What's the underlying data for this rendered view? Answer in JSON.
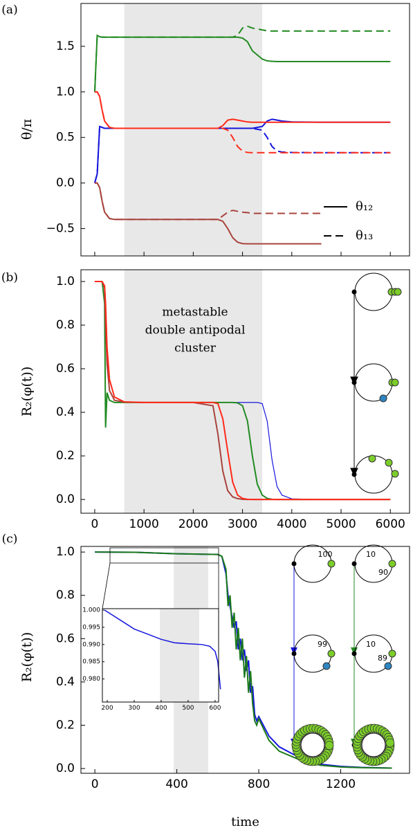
{
  "chart_data": [
    {
      "type": "line",
      "panel_label": "(a)",
      "y_label": "θ/π",
      "x": [
        0,
        50,
        100,
        150,
        200,
        300,
        400,
        600,
        1000,
        2400,
        2500,
        2600,
        2700,
        2800,
        2900,
        3000,
        3100,
        3200,
        3400,
        3500,
        3600,
        3700,
        3800,
        4000,
        4600,
        5000,
        6000
      ],
      "series": [
        {
          "color": "#228b22",
          "dash": "solid",
          "values": [
            1,
            1.62,
            1.605,
            1.6,
            1.6,
            1.6,
            1.6,
            1.6,
            1.6,
            1.6,
            1.6,
            1.6,
            1.6,
            1.6,
            1.6,
            1.59,
            1.55,
            1.45,
            1.36,
            1.34,
            1.335,
            1.333,
            1.333,
            1.333,
            1.333,
            1.333,
            1.333
          ]
        },
        {
          "color": "#228b22",
          "dash": "dashed",
          "values": [
            1,
            1.62,
            1.605,
            1.6,
            1.6,
            1.6,
            1.6,
            1.6,
            1.6,
            1.6,
            1.6,
            1.6,
            1.6,
            1.6,
            1.62,
            1.7,
            1.72,
            1.7,
            1.68,
            1.67,
            1.667,
            1.667,
            1.667,
            1.667,
            1.667,
            1.667,
            1.667
          ]
        },
        {
          "color": "#1515dd",
          "dash": "solid",
          "values": [
            0,
            0.1,
            0.62,
            0.61,
            0.6,
            0.6,
            0.6,
            0.6,
            0.6,
            0.6,
            0.6,
            0.6,
            0.6,
            0.6,
            0.6,
            0.6,
            0.6,
            0.6,
            0.62,
            0.68,
            0.7,
            0.69,
            0.68,
            0.67,
            0.667,
            0.667,
            0.667
          ]
        },
        {
          "color": "#1515dd",
          "dash": "dashed",
          "values": [
            0,
            0.1,
            0.62,
            0.61,
            0.6,
            0.6,
            0.6,
            0.6,
            0.6,
            0.6,
            0.6,
            0.6,
            0.6,
            0.6,
            0.6,
            0.6,
            0.6,
            0.6,
            0.58,
            0.5,
            0.4,
            0.35,
            0.34,
            0.335,
            0.333,
            0.333,
            0.333
          ]
        },
        {
          "color": "#ff2a1a",
          "dash": "solid",
          "values": [
            1,
            1,
            0.95,
            0.8,
            0.68,
            0.61,
            0.6,
            0.6,
            0.6,
            0.6,
            0.6,
            0.63,
            0.69,
            0.7,
            0.69,
            0.68,
            0.67,
            0.667,
            0.667,
            0.667,
            0.667,
            0.667,
            0.667,
            0.667,
            0.667,
            0.667,
            0.667
          ]
        },
        {
          "color": "#ff2a1a",
          "dash": "dashed",
          "values": [
            1,
            1,
            0.95,
            0.8,
            0.68,
            0.61,
            0.6,
            0.6,
            0.6,
            0.6,
            0.6,
            0.6,
            0.58,
            0.5,
            0.4,
            0.35,
            0.335,
            0.333,
            0.333,
            0.333,
            0.333,
            0.333,
            0.333,
            0.333,
            0.333,
            0.333,
            0.333
          ]
        },
        {
          "color": "#a8433d",
          "dash": "solid",
          "values": [
            0,
            0,
            -0.05,
            -0.2,
            -0.32,
            -0.39,
            -0.4,
            -0.4,
            -0.4,
            -0.4,
            -0.4,
            -0.42,
            -0.5,
            -0.6,
            -0.65,
            -0.665,
            -0.667,
            -0.667,
            -0.667,
            -0.667,
            -0.667,
            -0.667,
            -0.667,
            -0.667,
            -0.667,
            null,
            null
          ]
        },
        {
          "color": "#a8433d",
          "dash": "dashed",
          "values": [
            0,
            0,
            -0.05,
            -0.2,
            -0.32,
            -0.39,
            -0.4,
            -0.4,
            -0.4,
            -0.4,
            -0.4,
            -0.36,
            -0.32,
            -0.3,
            -0.31,
            -0.32,
            -0.325,
            -0.333,
            -0.333,
            -0.333,
            -0.333,
            -0.333,
            -0.333,
            -0.333,
            -0.333,
            null,
            null
          ]
        }
      ],
      "legend": [
        {
          "label": "θ₁₂",
          "dash": "solid"
        },
        {
          "label": "θ₁₃",
          "dash": "dashed"
        }
      ],
      "shaded": [
        600,
        3400
      ],
      "xlim": [
        -280,
        6390
      ],
      "xticks": [
        0,
        1000,
        2000,
        3000,
        4000,
        5000,
        6000
      ],
      "x_tick_labels": false,
      "ylim": [
        -0.8,
        1.97
      ],
      "yticks": [
        {
          "value": -0.5,
          "label": "−0.5"
        },
        {
          "value": 0,
          "label": "0.0"
        },
        {
          "value": 0.5,
          "label": "0.5"
        },
        {
          "value": 1,
          "label": "1.0"
        },
        {
          "value": 1.5,
          "label": "1.5"
        }
      ]
    },
    {
      "type": "line",
      "panel_label": "(b)",
      "y_label": "R₂(φ(t))",
      "annotation": [
        "metastable",
        "double antipodal",
        "cluster"
      ],
      "x": [
        0,
        150,
        200,
        220,
        250,
        300,
        400,
        600,
        1000,
        2000,
        2400,
        2500,
        2600,
        2700,
        2800,
        2900,
        3000,
        3100,
        3200,
        3300,
        3400,
        3500,
        3600,
        3700,
        3800,
        4000,
        4500,
        6000
      ],
      "series": [
        {
          "color": "#1515dd",
          "dash": "solid",
          "width": 1.2,
          "values": [
            1,
            1,
            0.98,
            0.9,
            0.7,
            0.55,
            0.47,
            0.448,
            0.445,
            0.445,
            0.445,
            0.445,
            0.445,
            0.445,
            0.445,
            0.445,
            0.445,
            0.445,
            0.445,
            0.445,
            0.44,
            0.36,
            0.18,
            0.06,
            0.02,
            0.003,
            0,
            0
          ]
        },
        {
          "color": "#228b22",
          "dash": "solid",
          "values": [
            1,
            1,
            0.9,
            0.33,
            0.49,
            0.455,
            0.445,
            0.445,
            0.445,
            0.445,
            0.445,
            0.445,
            0.445,
            0.445,
            0.445,
            0.443,
            0.43,
            0.36,
            0.2,
            0.07,
            0.02,
            0.005,
            0.001,
            0,
            0,
            0,
            0,
            0
          ]
        },
        {
          "color": "#a8433d",
          "dash": "solid",
          "values": [
            1,
            1,
            0.97,
            0.8,
            0.62,
            0.5,
            0.455,
            0.447,
            0.445,
            0.445,
            0.43,
            0.3,
            0.13,
            0.04,
            0.012,
            0.004,
            0.001,
            0,
            0,
            0,
            0,
            0,
            0,
            0,
            0,
            0,
            0,
            0
          ]
        },
        {
          "color": "#ff2a1a",
          "dash": "solid",
          "values": [
            1,
            1,
            0.98,
            0.9,
            0.7,
            0.55,
            0.47,
            0.448,
            0.445,
            0.445,
            0.445,
            0.44,
            0.37,
            0.22,
            0.08,
            0.02,
            0.005,
            0.001,
            0,
            0,
            0,
            0,
            0,
            0,
            0,
            0,
            0,
            0
          ]
        }
      ],
      "shaded": [
        600,
        3400
      ],
      "xlim": [
        -280,
        6390
      ],
      "xticks": [
        0,
        1000,
        2000,
        3000,
        4000,
        5000,
        6000
      ],
      "x_tick_labels": true,
      "ylim": [
        -0.063,
        1.054
      ],
      "yticks": [
        {
          "value": 0,
          "label": "0.0"
        },
        {
          "value": 0.2,
          "label": "0.2"
        },
        {
          "value": 0.4,
          "label": "0.4"
        },
        {
          "value": 0.6,
          "label": "0.6"
        },
        {
          "value": 0.8,
          "label": "0.8"
        },
        {
          "value": 1,
          "label": "1.0"
        }
      ]
    },
    {
      "type": "line",
      "panel_label": "(c)",
      "y_label": "R₂(φ(t))",
      "x_label": "time",
      "annotations": [
        "100",
        "10",
        "90",
        "99",
        "10",
        "89"
      ],
      "x": [
        0,
        200,
        400,
        500,
        600,
        620,
        640,
        650,
        660,
        670,
        680,
        690,
        700,
        710,
        720,
        730,
        740,
        750,
        760,
        770,
        780,
        790,
        800,
        850,
        900,
        1000,
        1100,
        1200,
        1300,
        1450
      ],
      "series": [
        {
          "color": "#1515dd",
          "dash": "solid",
          "values": [
            1,
            0.999,
            0.992,
            0.9905,
            0.989,
            0.98,
            0.9,
            0.8,
            0.75,
            0.7,
            0.65,
            0.68,
            0.55,
            0.6,
            0.5,
            0.55,
            0.45,
            0.5,
            0.35,
            0.38,
            0.25,
            0.22,
            0.24,
            0.15,
            0.1,
            0.05,
            0.02,
            0.01,
            0.005,
            0.002
          ]
        },
        {
          "color": "#1b7a1b",
          "dash": "solid",
          "values": [
            1,
            0.999,
            0.992,
            0.9905,
            0.989,
            0.98,
            0.92,
            0.75,
            0.8,
            0.65,
            0.72,
            0.55,
            0.65,
            0.5,
            0.6,
            0.42,
            0.52,
            0.35,
            0.45,
            0.3,
            0.22,
            0.2,
            0.23,
            0.13,
            0.08,
            0.04,
            0.015,
            0.007,
            0.004,
            0.002
          ]
        }
      ],
      "shaded": [
        385,
        553
      ],
      "xlim": [
        -68,
        1536
      ],
      "xticks": [
        0,
        400,
        800,
        1200
      ],
      "x_tick_labels": true,
      "ylim": [
        -0.022,
        1.026
      ],
      "yticks": [
        {
          "value": 0,
          "label": "0.0"
        },
        {
          "value": 0.2,
          "label": "0.2"
        },
        {
          "value": 0.4,
          "label": "0.4"
        },
        {
          "value": 0.6,
          "label": "0.6"
        },
        {
          "value": 0.8,
          "label": "0.8"
        },
        {
          "value": 1,
          "label": "1.0"
        }
      ]
    },
    {
      "type": "line",
      "x": [
        190,
        250,
        300,
        350,
        400,
        450,
        500,
        550,
        580,
        600,
        610,
        620
      ],
      "series": [
        {
          "color": "#1515dd",
          "dash": "solid",
          "values": [
            1.0,
            0.997,
            0.9945,
            0.993,
            0.9915,
            0.9905,
            0.9902,
            0.99,
            0.9895,
            0.988,
            0.985,
            0.977
          ]
        }
      ],
      "shaded": [
        395,
        541
      ],
      "xlim": [
        182,
        613
      ],
      "xticks": [
        200,
        300,
        400,
        500,
        600
      ],
      "x_tick_labels": true,
      "ylim": [
        0.9733,
        1.0004
      ],
      "yticks": [
        {
          "value": 0.98,
          "label": "0.980"
        },
        {
          "value": 0.985,
          "label": "0.985"
        },
        {
          "value": 0.99,
          "label": "0.990"
        },
        {
          "value": 0.995,
          "label": "0.995"
        },
        {
          "value": 1,
          "label": "1.000"
        }
      ]
    }
  ]
}
